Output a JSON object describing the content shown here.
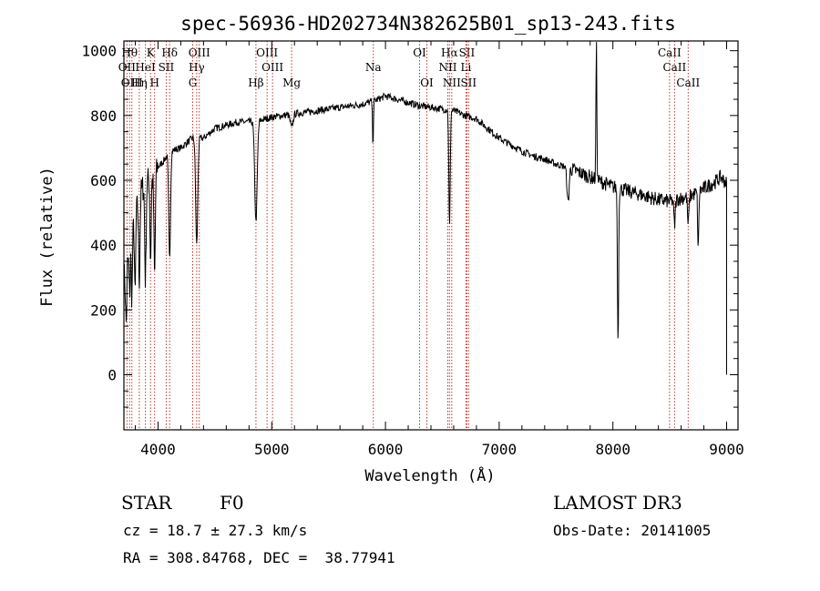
{
  "chart_data": {
    "type": "line",
    "title": "spec-56936-HD202734N382625B01_sp13-243.fits",
    "xlabel": "Wavelength (Å)",
    "ylabel": "Flux (relative)",
    "xlim": [
      3700,
      9100
    ],
    "ylim": [
      -170,
      1030
    ],
    "xticks": [
      4000,
      5000,
      6000,
      7000,
      8000,
      9000
    ],
    "xtick_labels": [
      "4000",
      "5000",
      "6000",
      "7000",
      "8000",
      "9000"
    ],
    "yticks": [
      0,
      200,
      400,
      600,
      800,
      1000
    ],
    "ytick_labels": [
      "0",
      "200",
      "400",
      "600",
      "800",
      "1000"
    ],
    "line_color": "#000000",
    "marker_color": "#c0392b",
    "continuum": [
      [
        3700,
        300
      ],
      [
        3760,
        420
      ],
      [
        3840,
        560
      ],
      [
        3900,
        600
      ],
      [
        3950,
        600
      ],
      [
        4000,
        640
      ],
      [
        4050,
        660
      ],
      [
        4100,
        690
      ],
      [
        4200,
        700
      ],
      [
        4300,
        730
      ],
      [
        4400,
        730
      ],
      [
        4500,
        760
      ],
      [
        4600,
        770
      ],
      [
        4700,
        780
      ],
      [
        4800,
        780
      ],
      [
        4900,
        785
      ],
      [
        5000,
        795
      ],
      [
        5100,
        800
      ],
      [
        5200,
        805
      ],
      [
        5300,
        810
      ],
      [
        5400,
        815
      ],
      [
        5500,
        820
      ],
      [
        5600,
        825
      ],
      [
        5700,
        830
      ],
      [
        5800,
        835
      ],
      [
        5900,
        845
      ],
      [
        6000,
        860
      ],
      [
        6100,
        850
      ],
      [
        6200,
        840
      ],
      [
        6300,
        830
      ],
      [
        6400,
        825
      ],
      [
        6500,
        820
      ],
      [
        6600,
        815
      ],
      [
        6700,
        800
      ],
      [
        6800,
        790
      ],
      [
        6900,
        760
      ],
      [
        7000,
        730
      ],
      [
        7100,
        710
      ],
      [
        7200,
        690
      ],
      [
        7300,
        675
      ],
      [
        7400,
        665
      ],
      [
        7500,
        650
      ],
      [
        7600,
        640
      ],
      [
        7700,
        625
      ],
      [
        7800,
        610
      ],
      [
        7900,
        595
      ],
      [
        8000,
        580
      ],
      [
        8100,
        570
      ],
      [
        8200,
        560
      ],
      [
        8300,
        550
      ],
      [
        8400,
        540
      ],
      [
        8500,
        535
      ],
      [
        8600,
        545
      ],
      [
        8700,
        555
      ],
      [
        8800,
        575
      ],
      [
        8900,
        595
      ],
      [
        8950,
        610
      ],
      [
        9000,
        590
      ]
    ],
    "absorption_features": [
      [
        3720,
        180,
        6
      ],
      [
        3750,
        150,
        6
      ],
      [
        3770,
        200,
        5
      ],
      [
        3798,
        250,
        5
      ],
      [
        3835,
        260,
        6
      ],
      [
        3889,
        300,
        6
      ],
      [
        3934,
        250,
        5
      ],
      [
        3970,
        320,
        6
      ],
      [
        4102,
        330,
        8
      ],
      [
        4340,
        330,
        9
      ],
      [
        4861,
        310,
        11
      ],
      [
        5175,
        40,
        12
      ],
      [
        5890,
        130,
        4
      ],
      [
        6563,
        360,
        6
      ],
      [
        7605,
        110,
        9
      ],
      [
        8045,
        480,
        5
      ],
      [
        8542,
        80,
        6
      ],
      [
        8662,
        90,
        6
      ],
      [
        8750,
        180,
        5
      ]
    ],
    "emission_features": [
      [
        7855,
        420,
        4
      ]
    ],
    "line_markers": [
      {
        "wavelength": 3750,
        "row": 1,
        "label": "Hθ"
      },
      {
        "wavelength": 3727,
        "row": 2,
        "label": "OII"
      },
      {
        "wavelength": 3770,
        "row": 3,
        "label": "OIII"
      },
      {
        "wavelength": 3934,
        "row": 1,
        "label": "K"
      },
      {
        "wavelength": 3889,
        "row": 2,
        "label": "HeI"
      },
      {
        "wavelength": 3835,
        "row": 3,
        "label": "Hη"
      },
      {
        "wavelength": 4102,
        "row": 1,
        "label": "Hδ"
      },
      {
        "wavelength": 4072,
        "row": 2,
        "label": "SII"
      },
      {
        "wavelength": 3970,
        "row": 3,
        "label": "H"
      },
      {
        "wavelength": 4363,
        "row": 1,
        "label": "OIII"
      },
      {
        "wavelength": 4340,
        "row": 2,
        "label": "Hγ"
      },
      {
        "wavelength": 4305,
        "row": 3,
        "label": "G"
      },
      {
        "wavelength": 4861,
        "row": 3,
        "label": "Hβ"
      },
      {
        "wavelength": 4959,
        "row": 1,
        "label": "OIII"
      },
      {
        "wavelength": 5007,
        "row": 2,
        "label": "OIII"
      },
      {
        "wavelength": 5175,
        "row": 3,
        "label": "Mg"
      },
      {
        "wavelength": 5893,
        "row": 2,
        "label": "Na"
      },
      {
        "wavelength": 6300,
        "row": 1,
        "label": "OI"
      },
      {
        "wavelength": 6364,
        "row": 3,
        "label": "OI"
      },
      {
        "wavelength": 6563,
        "row": 1,
        "label": "Hα"
      },
      {
        "wavelength": 6548,
        "row": 2,
        "label": "NII"
      },
      {
        "wavelength": 6583,
        "row": 3,
        "label": "NII"
      },
      {
        "wavelength": 6716,
        "row": 1,
        "label": "SII"
      },
      {
        "wavelength": 6708,
        "row": 2,
        "label": "Li"
      },
      {
        "wavelength": 6731,
        "row": 3,
        "label": "SII"
      },
      {
        "wavelength": 8498,
        "row": 1,
        "label": "CaII"
      },
      {
        "wavelength": 8542,
        "row": 2,
        "label": "CaII"
      },
      {
        "wavelength": 8662,
        "row": 3,
        "label": "CaII"
      }
    ]
  },
  "info": {
    "object_class": "STAR",
    "subclass": "F0",
    "survey": "LAMOST DR3",
    "cz": "cz = 18.7 ± 27.3 km/s",
    "obs_date": "Obs-Date: 20141005",
    "coords": "RA = 308.84768, DEC =  38.77941"
  }
}
